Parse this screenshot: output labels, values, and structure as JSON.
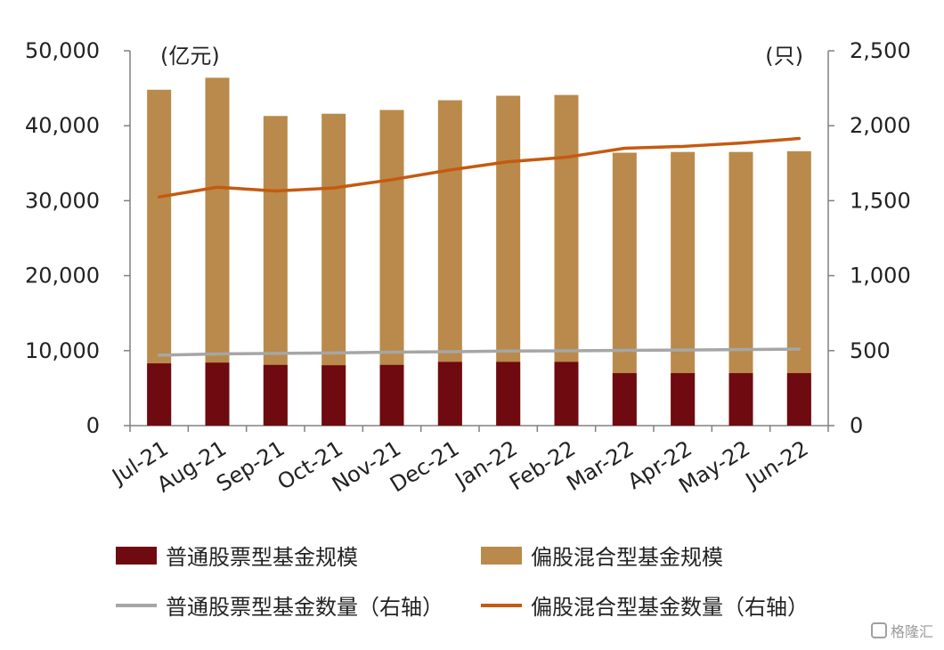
{
  "chart_data": {
    "type": "bar",
    "categories": [
      "Jul-21",
      "Aug-21",
      "Sep-21",
      "Oct-21",
      "Nov-21",
      "Dec-21",
      "Jan-22",
      "Feb-22",
      "Mar-22",
      "Apr-22",
      "May-22",
      "Jun-22"
    ],
    "left_unit": "(亿元)",
    "right_unit": "(只)",
    "y_left": {
      "min": 0,
      "max": 50000,
      "ticks": [
        "0",
        "10,000",
        "20,000",
        "30,000",
        "40,000",
        "50,000"
      ]
    },
    "y_right": {
      "min": 0,
      "max": 2500,
      "ticks": [
        "0",
        "500",
        "1,000",
        "1,500",
        "2,000",
        "2,500"
      ]
    },
    "series": [
      {
        "name": "普通股票型基金规模",
        "kind": "bar",
        "axis": "left",
        "color": "#6e0a10",
        "values": [
          8300,
          8400,
          8100,
          8050,
          8100,
          8500,
          8500,
          8500,
          7000,
          7000,
          7000,
          7000
        ]
      },
      {
        "name": "偏股混合型基金规模",
        "kind": "bar",
        "axis": "left",
        "color": "#b98a4b",
        "values": [
          44800,
          46400,
          41300,
          41600,
          42100,
          43400,
          44000,
          44100,
          36400,
          36500,
          36500,
          36600
        ]
      },
      {
        "name": "普通股票型基金数量（右轴）",
        "kind": "line",
        "axis": "right",
        "color": "#a6a6a6",
        "values": [
          470,
          478,
          482,
          485,
          490,
          493,
          497,
          499,
          502,
          504,
          507,
          510
        ]
      },
      {
        "name": "偏股混合型基金数量（右轴）",
        "kind": "line",
        "axis": "right",
        "color": "#c55a11",
        "values": [
          1525,
          1590,
          1565,
          1585,
          1640,
          1705,
          1760,
          1790,
          1850,
          1862,
          1885,
          1915
        ]
      }
    ],
    "legend_position": "bottom",
    "grid": false
  },
  "watermark": {
    "text": "格隆汇"
  }
}
